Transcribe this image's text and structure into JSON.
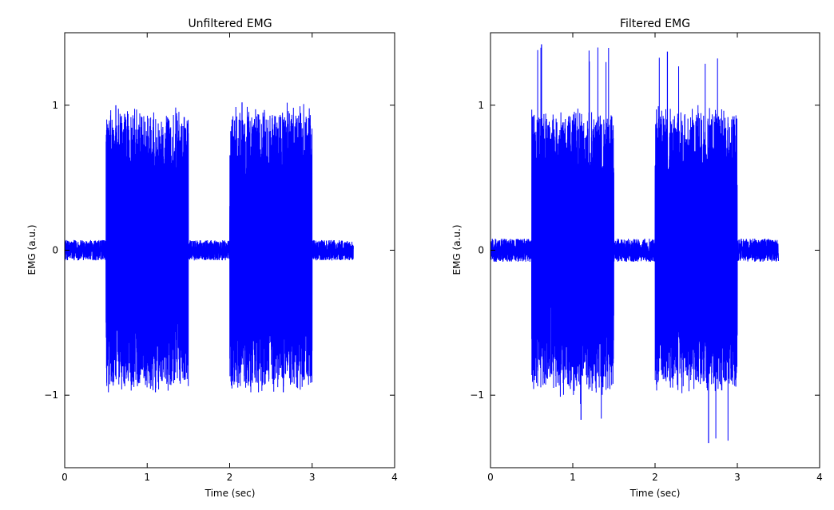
{
  "colors": {
    "signal": "#0000ff",
    "axes": "#000000",
    "background": "#ffffff"
  },
  "chart_data": [
    {
      "type": "line",
      "title": "Unfiltered EMG",
      "xlabel": "Time (sec)",
      "ylabel": "EMG (a.u.)",
      "xlim": [
        0,
        4
      ],
      "ylim": [
        -1.5,
        1.5
      ],
      "xticks": [
        0,
        1,
        2,
        3,
        4
      ],
      "xtick_labels": [
        "0",
        "1",
        "2",
        "3",
        "4"
      ],
      "yticks": [
        -1,
        0,
        1
      ],
      "ytick_labels": [
        "−1",
        "0",
        "1"
      ],
      "grid": false,
      "series_color": "#0000ff",
      "signal_extent": [
        0.0,
        3.5
      ],
      "bursts": [
        {
          "start": 0.5,
          "end": 1.5,
          "peak_pos": 1.0,
          "peak_neg": -0.98
        },
        {
          "start": 2.0,
          "end": 3.0,
          "peak_pos": 1.02,
          "peak_neg": -0.98
        }
      ],
      "baseline_amplitude": 0.07
    },
    {
      "type": "line",
      "title": "Filtered EMG",
      "xlabel": "Time (sec)",
      "ylabel": "EMG (a.u.)",
      "xlim": [
        0,
        4
      ],
      "ylim": [
        -1.5,
        1.5
      ],
      "xticks": [
        0,
        1,
        2,
        3,
        4
      ],
      "xtick_labels": [
        "0",
        "1",
        "2",
        "3",
        "4"
      ],
      "yticks": [
        -1,
        0,
        1
      ],
      "ytick_labels": [
        "−1",
        "0",
        "1"
      ],
      "grid": false,
      "series_color": "#0000ff",
      "signal_extent": [
        0.0,
        3.5
      ],
      "bursts": [
        {
          "start": 0.5,
          "end": 1.5,
          "peak_pos": 1.42,
          "peak_neg": -1.17
        },
        {
          "start": 2.0,
          "end": 3.0,
          "peak_pos": 1.37,
          "peak_neg": -1.33
        }
      ],
      "baseline_amplitude": 0.08
    }
  ]
}
